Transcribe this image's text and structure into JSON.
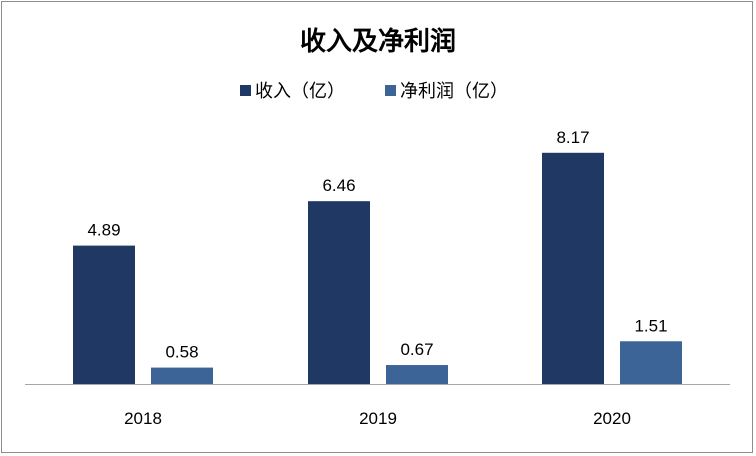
{
  "chart_data": {
    "type": "bar",
    "title": "收入及净利润",
    "categories": [
      "2018",
      "2019",
      "2020"
    ],
    "series": [
      {
        "name": "收入（亿）",
        "values": [
          4.89,
          6.46,
          8.17
        ],
        "color": "#1f3864"
      },
      {
        "name": "净利润（亿）",
        "values": [
          0.58,
          0.67,
          1.51
        ],
        "color": "#3c6496"
      }
    ],
    "data_labels": [
      [
        "4.89",
        "6.46",
        "8.17"
      ],
      [
        "0.58",
        "0.67",
        "1.51"
      ]
    ],
    "ylim": [
      0,
      10
    ],
    "xlabel": "",
    "ylabel": "",
    "grid": false,
    "legend_position": "top-center"
  }
}
